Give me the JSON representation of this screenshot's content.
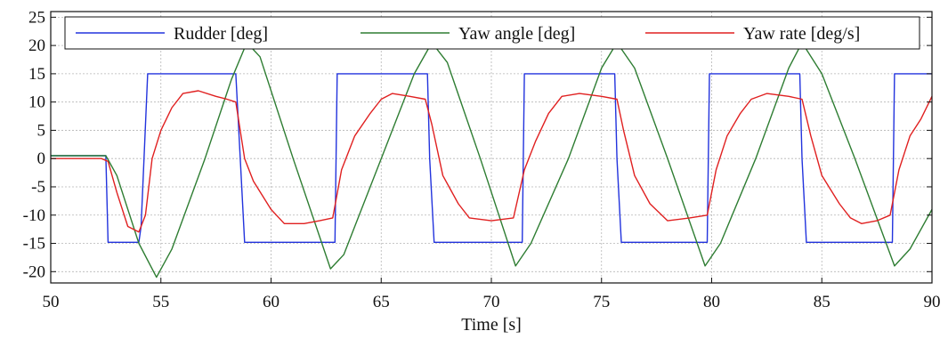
{
  "chart_data": {
    "type": "line",
    "title": "",
    "xlabel": "Time [s]",
    "ylabel": "",
    "xlim": [
      50,
      90
    ],
    "ylim": [
      -22,
      26
    ],
    "x_ticks": [
      50,
      55,
      60,
      65,
      70,
      75,
      80,
      85,
      90
    ],
    "y_ticks": [
      -20,
      -15,
      -10,
      -5,
      0,
      5,
      10,
      15,
      20,
      25
    ],
    "grid": true,
    "legend_placement": "top",
    "series": [
      {
        "name": "Rudder [deg]",
        "color": "#2233dd",
        "points": [
          [
            50,
            0.5
          ],
          [
            52.5,
            0.5
          ],
          [
            52.6,
            -14.8
          ],
          [
            54.0,
            -14.8
          ],
          [
            54.1,
            -12
          ],
          [
            54.4,
            15
          ],
          [
            58.4,
            15
          ],
          [
            58.6,
            0
          ],
          [
            58.8,
            -14.8
          ],
          [
            62.8,
            -14.8
          ],
          [
            62.9,
            -14.8
          ],
          [
            63.0,
            15
          ],
          [
            67.1,
            15
          ],
          [
            67.2,
            0
          ],
          [
            67.4,
            -14.8
          ],
          [
            71.3,
            -14.8
          ],
          [
            71.4,
            -14.8
          ],
          [
            71.5,
            15
          ],
          [
            75.6,
            15
          ],
          [
            75.7,
            0
          ],
          [
            75.9,
            -14.8
          ],
          [
            79.7,
            -14.8
          ],
          [
            79.8,
            -14.8
          ],
          [
            79.9,
            15
          ],
          [
            84.0,
            15
          ],
          [
            84.1,
            0
          ],
          [
            84.3,
            -14.8
          ],
          [
            88.1,
            -14.8
          ],
          [
            88.2,
            -14.8
          ],
          [
            88.3,
            15
          ],
          [
            90,
            15
          ]
        ]
      },
      {
        "name": "Yaw angle [deg]",
        "color": "#2e7d32",
        "points": [
          [
            50,
            0.5
          ],
          [
            52.5,
            0.5
          ],
          [
            53.0,
            -3
          ],
          [
            54.0,
            -15
          ],
          [
            54.8,
            -21
          ],
          [
            55.5,
            -16
          ],
          [
            57.0,
            0
          ],
          [
            58.2,
            14
          ],
          [
            58.9,
            20.5
          ],
          [
            59.5,
            18
          ],
          [
            61.0,
            0
          ],
          [
            62.7,
            -19.5
          ],
          [
            63.3,
            -17
          ],
          [
            65.0,
            0
          ],
          [
            66.5,
            15
          ],
          [
            67.3,
            20.5
          ],
          [
            68.0,
            17
          ],
          [
            69.5,
            0
          ],
          [
            71.1,
            -19
          ],
          [
            71.8,
            -15
          ],
          [
            73.5,
            0
          ],
          [
            75.0,
            16
          ],
          [
            75.7,
            20.5
          ],
          [
            76.5,
            16
          ],
          [
            78.0,
            0
          ],
          [
            79.7,
            -19
          ],
          [
            80.4,
            -15
          ],
          [
            82.0,
            0
          ],
          [
            83.5,
            16
          ],
          [
            84.1,
            20.5
          ],
          [
            85.0,
            15
          ],
          [
            86.5,
            0
          ],
          [
            88.3,
            -19
          ],
          [
            89.0,
            -16
          ],
          [
            90,
            -9
          ]
        ]
      },
      {
        "name": "Yaw rate [deg/s]",
        "color": "#e02020",
        "points": [
          [
            50,
            0
          ],
          [
            52.3,
            0
          ],
          [
            52.6,
            -0.5
          ],
          [
            53.0,
            -6
          ],
          [
            53.5,
            -12
          ],
          [
            54.0,
            -13
          ],
          [
            54.3,
            -10
          ],
          [
            54.6,
            0
          ],
          [
            55.0,
            5
          ],
          [
            55.5,
            9
          ],
          [
            56.0,
            11.5
          ],
          [
            56.7,
            12
          ],
          [
            57.5,
            11
          ],
          [
            58.0,
            10.5
          ],
          [
            58.4,
            10
          ],
          [
            58.8,
            0
          ],
          [
            59.2,
            -4
          ],
          [
            60.0,
            -9
          ],
          [
            60.6,
            -11.5
          ],
          [
            61.5,
            -11.5
          ],
          [
            62.2,
            -11
          ],
          [
            62.8,
            -10.5
          ],
          [
            63.2,
            -2
          ],
          [
            63.8,
            4
          ],
          [
            64.5,
            8
          ],
          [
            65.0,
            10.5
          ],
          [
            65.5,
            11.5
          ],
          [
            66.3,
            11
          ],
          [
            67.0,
            10.5
          ],
          [
            67.3,
            6
          ],
          [
            67.8,
            -3
          ],
          [
            68.5,
            -8
          ],
          [
            69.0,
            -10.5
          ],
          [
            70.0,
            -11
          ],
          [
            71.0,
            -10.5
          ],
          [
            71.5,
            -2
          ],
          [
            72.0,
            3
          ],
          [
            72.6,
            8
          ],
          [
            73.2,
            11
          ],
          [
            74.0,
            11.5
          ],
          [
            75.0,
            11
          ],
          [
            75.7,
            10.5
          ],
          [
            76.0,
            5
          ],
          [
            76.5,
            -3
          ],
          [
            77.2,
            -8
          ],
          [
            78.0,
            -11
          ],
          [
            79.0,
            -10.5
          ],
          [
            79.8,
            -10
          ],
          [
            80.2,
            -2
          ],
          [
            80.7,
            4
          ],
          [
            81.3,
            8
          ],
          [
            81.8,
            10.5
          ],
          [
            82.5,
            11.5
          ],
          [
            83.5,
            11
          ],
          [
            84.1,
            10.5
          ],
          [
            84.5,
            4
          ],
          [
            85.0,
            -3
          ],
          [
            85.8,
            -8
          ],
          [
            86.3,
            -10.5
          ],
          [
            86.8,
            -11.5
          ],
          [
            87.5,
            -11
          ],
          [
            88.1,
            -10
          ],
          [
            88.5,
            -2
          ],
          [
            89.0,
            4
          ],
          [
            89.5,
            7
          ],
          [
            90,
            11
          ]
        ]
      }
    ]
  }
}
